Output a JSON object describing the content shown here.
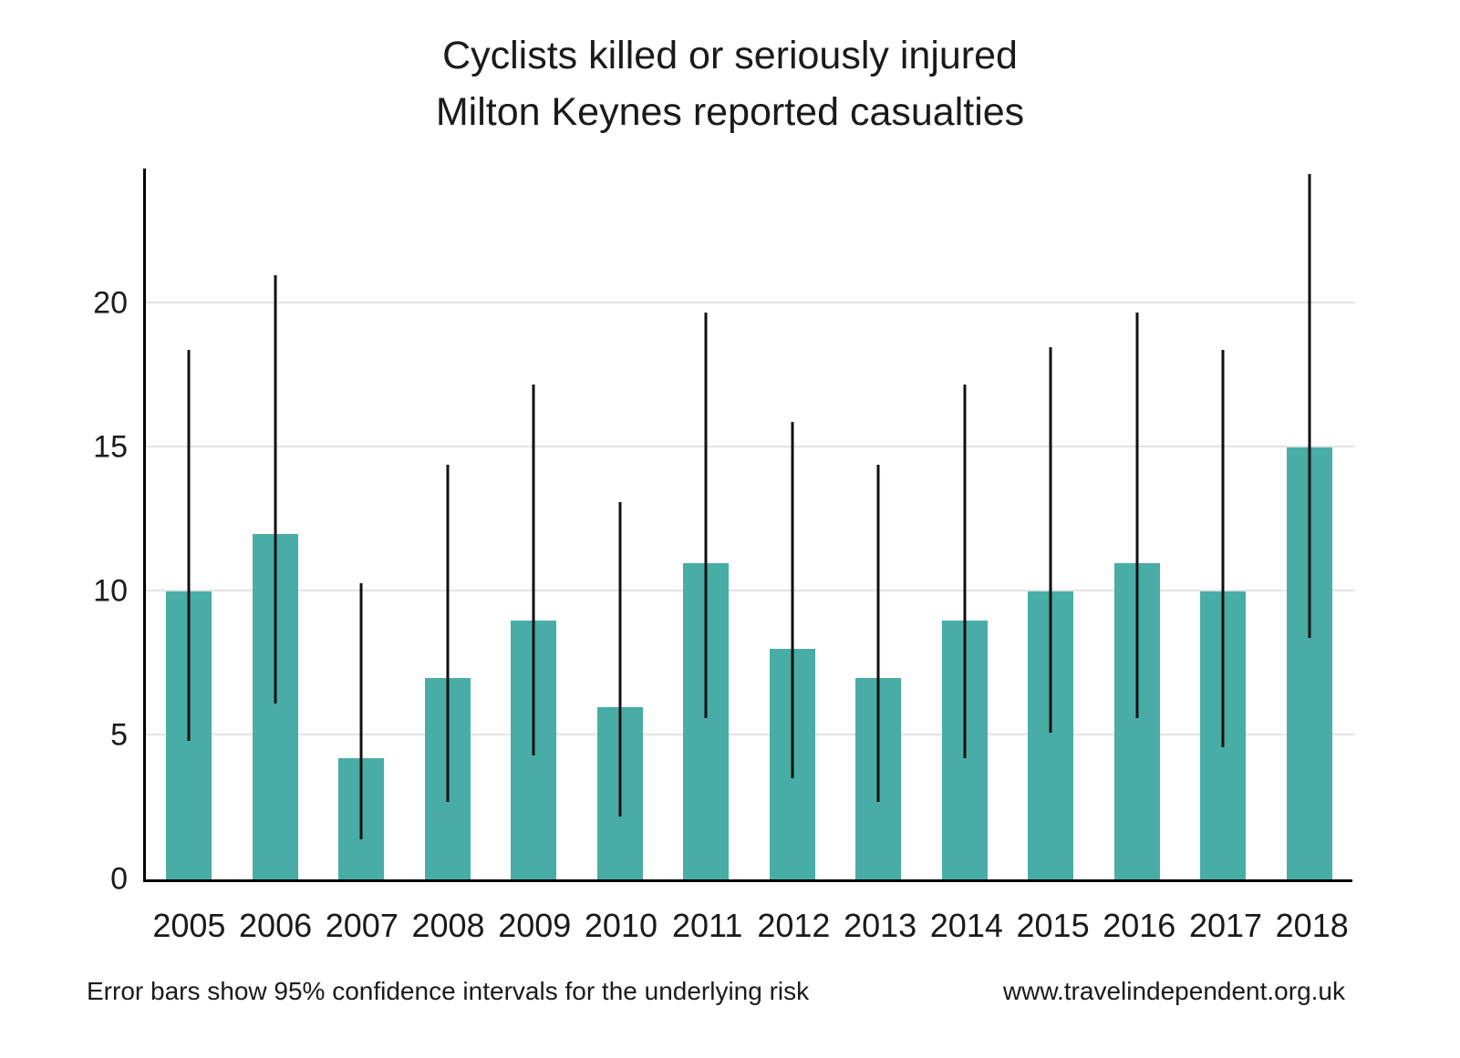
{
  "chart_data": {
    "type": "bar",
    "title": "Cyclists killed or seriously injured",
    "subtitle": "Milton Keynes reported casualties",
    "xlabel": "",
    "ylabel": "",
    "ylim": [
      0,
      24.7
    ],
    "yticks": [
      0,
      5,
      10,
      15,
      20
    ],
    "grid": true,
    "bar_color": "#48ada6",
    "error_bar_color": "#111111",
    "categories": [
      "2005",
      "2006",
      "2007",
      "2008",
      "2009",
      "2010",
      "2011",
      "2012",
      "2013",
      "2014",
      "2015",
      "2016",
      "2017",
      "2018"
    ],
    "values": [
      10,
      12,
      4.2,
      7,
      9,
      6,
      11,
      8,
      7,
      9,
      10,
      11,
      10,
      15
    ],
    "ci_low": [
      4.8,
      6.1,
      1.4,
      2.7,
      4.3,
      2.2,
      5.6,
      3.5,
      2.7,
      4.2,
      5.1,
      5.6,
      4.6,
      8.4
    ],
    "ci_high": [
      18.4,
      21.0,
      10.3,
      14.4,
      17.2,
      13.1,
      19.7,
      15.9,
      14.4,
      17.2,
      18.5,
      19.7,
      18.4,
      24.5
    ]
  },
  "footer": {
    "note": "Error bars show 95% confidence intervals for the underlying risk",
    "url": "www.travelindependent.org.uk"
  }
}
